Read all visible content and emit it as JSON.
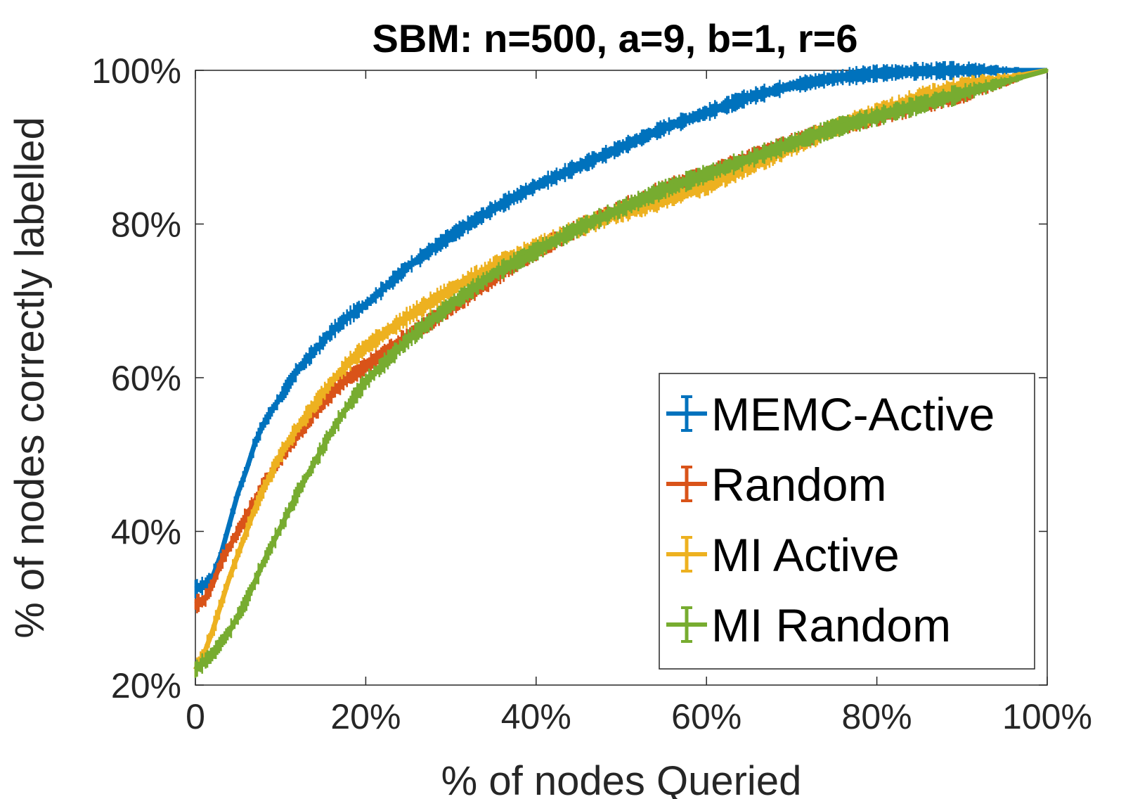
{
  "chart_data": {
    "type": "line",
    "title": "SBM: n=500, a=9, b=1, r=6",
    "xlabel": "% of nodes Queried",
    "ylabel": "% of nodes correctly labelled",
    "xlim": [
      0,
      100
    ],
    "ylim": [
      20,
      100
    ],
    "x_ticks": [
      0,
      20,
      40,
      60,
      80,
      100
    ],
    "x_tick_labels": [
      "0",
      "20%",
      "40%",
      "60%",
      "80%",
      "100%"
    ],
    "y_ticks": [
      20,
      40,
      60,
      80,
      100
    ],
    "y_tick_labels": [
      "20%",
      "40%",
      "60%",
      "80%",
      "100%"
    ],
    "grid": false,
    "legend_position": "bottom-right",
    "series": [
      {
        "name": "MEMC-Active",
        "color": "#0072BD",
        "x": [
          0,
          1,
          2,
          3,
          4,
          5,
          6,
          7,
          8,
          10,
          12,
          14,
          16,
          18,
          20,
          25,
          30,
          35,
          40,
          45,
          50,
          55,
          60,
          65,
          70,
          75,
          80,
          85,
          90,
          95,
          100
        ],
        "y": [
          32.5,
          33,
          34,
          37,
          41,
          45,
          48,
          51.5,
          54,
          57.5,
          61,
          63.5,
          66,
          68,
          69.5,
          74.5,
          78.5,
          82,
          85,
          87.5,
          90,
          92.5,
          94.5,
          96.5,
          98,
          99,
          99.6,
          99.9,
          100,
          100,
          100
        ],
        "err": 0.9
      },
      {
        "name": "Random",
        "color": "#D95319",
        "x": [
          0,
          1,
          2,
          3,
          4,
          5,
          6,
          7,
          8,
          10,
          12,
          14,
          16,
          18,
          20,
          25,
          30,
          35,
          40,
          45,
          50,
          55,
          60,
          65,
          70,
          75,
          80,
          85,
          90,
          95,
          100
        ],
        "y": [
          30.5,
          31,
          33,
          36,
          38,
          40,
          42,
          44,
          46,
          49.5,
          52.5,
          55.5,
          58,
          60,
          61.5,
          65.5,
          69,
          73,
          76.5,
          79.5,
          82,
          84.5,
          86.5,
          88.5,
          90.5,
          92.5,
          94,
          95.5,
          97,
          98.5,
          100
        ],
        "err": 1.0
      },
      {
        "name": "MI Active",
        "color": "#EDB120",
        "x": [
          0,
          1,
          2,
          3,
          4,
          5,
          6,
          7,
          8,
          10,
          12,
          14,
          16,
          18,
          20,
          25,
          30,
          35,
          40,
          45,
          50,
          55,
          60,
          65,
          70,
          75,
          80,
          85,
          90,
          95,
          100
        ],
        "y": [
          22,
          24,
          27,
          30.5,
          34,
          37,
          40,
          43,
          45.5,
          50,
          53.5,
          56.5,
          59.5,
          62,
          64,
          68,
          71.5,
          74.5,
          77,
          79.5,
          81.5,
          83,
          85,
          87.5,
          90,
          92.5,
          94.5,
          96.5,
          98,
          99,
          100
        ],
        "err": 1.0
      },
      {
        "name": "MI Random",
        "color": "#77AC30",
        "x": [
          0,
          1,
          2,
          3,
          4,
          5,
          6,
          7,
          8,
          10,
          12,
          14,
          16,
          18,
          20,
          25,
          30,
          35,
          40,
          45,
          50,
          55,
          60,
          65,
          70,
          75,
          80,
          85,
          90,
          95,
          100
        ],
        "y": [
          22,
          23,
          24,
          25.5,
          27,
          29,
          31,
          33.5,
          36,
          40.5,
          45,
          49,
          53,
          56.5,
          59.5,
          65,
          69.5,
          73.5,
          76.5,
          79.5,
          82,
          84.5,
          86.5,
          88.5,
          90.5,
          92.5,
          94,
          95.5,
          97,
          98.5,
          100
        ],
        "err": 1.0
      }
    ]
  }
}
